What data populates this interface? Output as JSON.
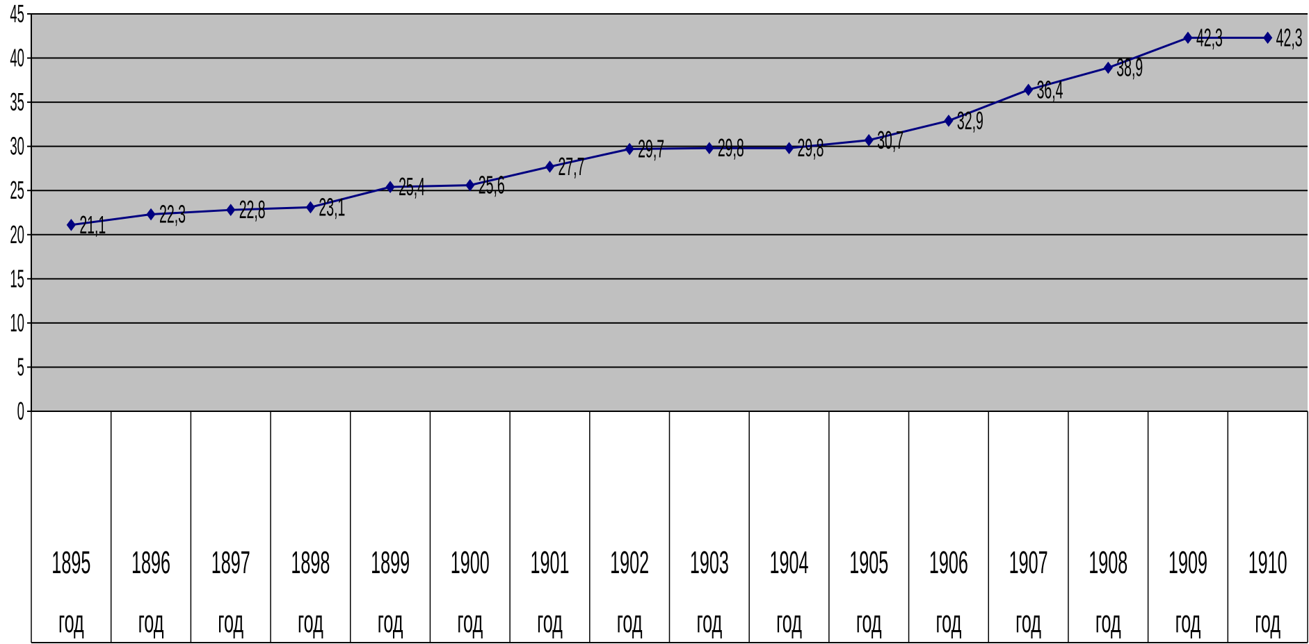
{
  "chart_data": {
    "type": "line",
    "title": "",
    "xlabel": "",
    "ylabel": "",
    "ylim": [
      0,
      45
    ],
    "y_ticks": [
      "0",
      "5",
      "10",
      "15",
      "20",
      "25",
      "30",
      "35",
      "40",
      "45"
    ],
    "grid": "horizontal",
    "legend": "none",
    "categories": [
      {
        "year": "1895",
        "unit": "год"
      },
      {
        "year": "1896",
        "unit": "год"
      },
      {
        "year": "1897",
        "unit": "год"
      },
      {
        "year": "1898",
        "unit": "год"
      },
      {
        "year": "1899",
        "unit": "год"
      },
      {
        "year": "1900",
        "unit": "год"
      },
      {
        "year": "1901",
        "unit": "год"
      },
      {
        "year": "1902",
        "unit": "год"
      },
      {
        "year": "1903",
        "unit": "год"
      },
      {
        "year": "1904",
        "unit": "год"
      },
      {
        "year": "1905",
        "unit": "год"
      },
      {
        "year": "1906",
        "unit": "год"
      },
      {
        "year": "1907",
        "unit": "год"
      },
      {
        "year": "1908",
        "unit": "год"
      },
      {
        "year": "1909",
        "unit": "год"
      },
      {
        "year": "1910",
        "unit": "год"
      }
    ],
    "series": [
      {
        "values": [
          21.1,
          22.3,
          22.8,
          23.1,
          25.4,
          25.6,
          27.7,
          29.7,
          29.8,
          29.8,
          30.7,
          32.9,
          36.4,
          38.9,
          42.3,
          42.3
        ],
        "data_labels": [
          "21,1",
          "22,3",
          "22,8",
          "23,1",
          "25,4",
          "25,6",
          "27,7",
          "29,7",
          "29,8",
          "29,8",
          "30,7",
          "32,9",
          "36,4",
          "38,9",
          "42,3",
          "42,3"
        ]
      }
    ],
    "colors": {
      "plot_background": "#c0c0c0",
      "gridline": "#000000",
      "series_line": "#000080",
      "marker": "#000080"
    },
    "marker": "diamond"
  }
}
